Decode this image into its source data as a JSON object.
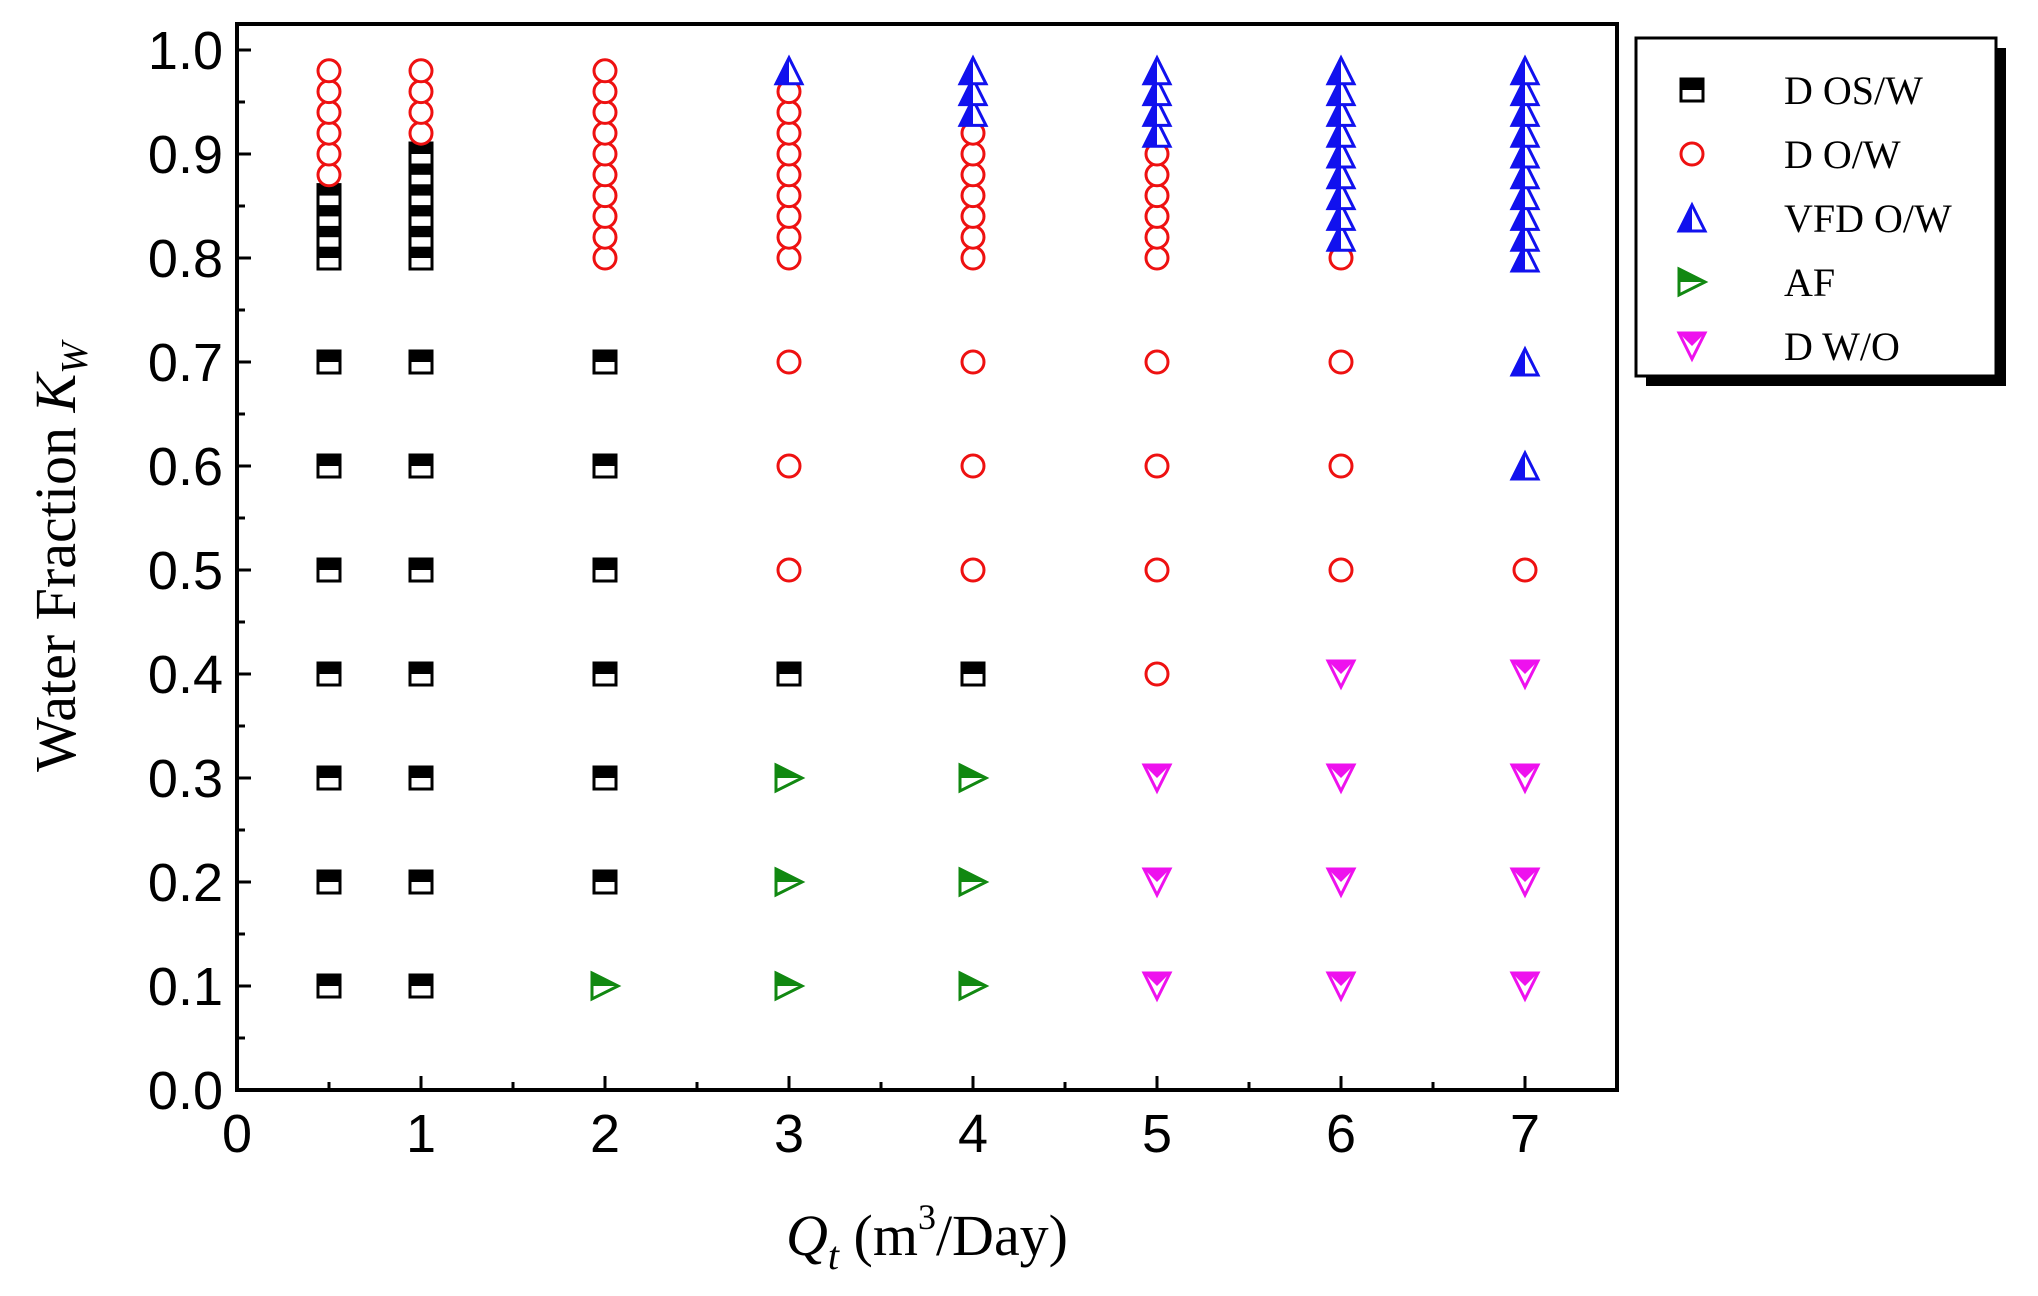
{
  "chart_data": {
    "type": "scatter",
    "title": "",
    "xlabel": {
      "symbol": "Q",
      "subscript": "t",
      "units_prefix": " (m",
      "superscript": "3",
      "units_suffix": "/Day)"
    },
    "ylabel": {
      "text": "Water Fraction ",
      "symbol": "K",
      "subscript": "W"
    },
    "xlim": [
      0,
      7.5
    ],
    "ylim": [
      0,
      1.0
    ],
    "x_ticks": [
      "0",
      "1",
      "2",
      "3",
      "4",
      "5",
      "6",
      "7"
    ],
    "y_ticks": [
      "0.0",
      "0.1",
      "0.2",
      "0.3",
      "0.4",
      "0.5",
      "0.6",
      "0.7",
      "0.8",
      "0.9",
      "1.0"
    ],
    "legend_position": "outside-top-right",
    "colors": {
      "axis": "#000000"
    },
    "series": [
      {
        "name": "D OS/W",
        "marker": "half-square",
        "color": "#000000",
        "points": [
          [
            0.5,
            0.1
          ],
          [
            0.5,
            0.2
          ],
          [
            0.5,
            0.3
          ],
          [
            0.5,
            0.4
          ],
          [
            0.5,
            0.5
          ],
          [
            0.5,
            0.6
          ],
          [
            0.5,
            0.7
          ],
          [
            0.5,
            0.8
          ],
          [
            0.5,
            0.82
          ],
          [
            0.5,
            0.84
          ],
          [
            0.5,
            0.86
          ],
          [
            1,
            0.1
          ],
          [
            1,
            0.2
          ],
          [
            1,
            0.3
          ],
          [
            1,
            0.4
          ],
          [
            1,
            0.5
          ],
          [
            1,
            0.6
          ],
          [
            1,
            0.7
          ],
          [
            1,
            0.8
          ],
          [
            1,
            0.82
          ],
          [
            1,
            0.84
          ],
          [
            1,
            0.86
          ],
          [
            1,
            0.88
          ],
          [
            1,
            0.9
          ],
          [
            2,
            0.2
          ],
          [
            2,
            0.3
          ],
          [
            2,
            0.4
          ],
          [
            2,
            0.5
          ],
          [
            2,
            0.6
          ],
          [
            2,
            0.7
          ],
          [
            3,
            0.4
          ],
          [
            4,
            0.4
          ]
        ]
      },
      {
        "name": "D O/W",
        "marker": "circle",
        "color": "#ee1111",
        "points": [
          [
            0.5,
            0.88
          ],
          [
            0.5,
            0.9
          ],
          [
            0.5,
            0.92
          ],
          [
            0.5,
            0.94
          ],
          [
            0.5,
            0.96
          ],
          [
            0.5,
            0.98
          ],
          [
            1,
            0.92
          ],
          [
            1,
            0.94
          ],
          [
            1,
            0.96
          ],
          [
            1,
            0.98
          ],
          [
            2,
            0.8
          ],
          [
            2,
            0.82
          ],
          [
            2,
            0.84
          ],
          [
            2,
            0.86
          ],
          [
            2,
            0.88
          ],
          [
            2,
            0.9
          ],
          [
            2,
            0.92
          ],
          [
            2,
            0.94
          ],
          [
            2,
            0.96
          ],
          [
            2,
            0.98
          ],
          [
            3,
            0.5
          ],
          [
            3,
            0.6
          ],
          [
            3,
            0.7
          ],
          [
            3,
            0.8
          ],
          [
            3,
            0.82
          ],
          [
            3,
            0.84
          ],
          [
            3,
            0.86
          ],
          [
            3,
            0.88
          ],
          [
            3,
            0.9
          ],
          [
            3,
            0.92
          ],
          [
            3,
            0.94
          ],
          [
            3,
            0.96
          ],
          [
            4,
            0.5
          ],
          [
            4,
            0.6
          ],
          [
            4,
            0.7
          ],
          [
            4,
            0.8
          ],
          [
            4,
            0.82
          ],
          [
            4,
            0.84
          ],
          [
            4,
            0.86
          ],
          [
            4,
            0.88
          ],
          [
            4,
            0.9
          ],
          [
            4,
            0.92
          ],
          [
            5,
            0.4
          ],
          [
            5,
            0.5
          ],
          [
            5,
            0.6
          ],
          [
            5,
            0.7
          ],
          [
            5,
            0.8
          ],
          [
            5,
            0.82
          ],
          [
            5,
            0.84
          ],
          [
            5,
            0.86
          ],
          [
            5,
            0.88
          ],
          [
            5,
            0.9
          ],
          [
            6,
            0.5
          ],
          [
            6,
            0.6
          ],
          [
            6,
            0.7
          ],
          [
            6,
            0.8
          ],
          [
            7,
            0.5
          ]
        ]
      },
      {
        "name": "VFD O/W",
        "marker": "half-triangle-up",
        "color": "#1111ee",
        "points": [
          [
            3,
            0.98
          ],
          [
            4,
            0.94
          ],
          [
            4,
            0.96
          ],
          [
            4,
            0.98
          ],
          [
            5,
            0.92
          ],
          [
            5,
            0.94
          ],
          [
            5,
            0.96
          ],
          [
            5,
            0.98
          ],
          [
            6,
            0.82
          ],
          [
            6,
            0.84
          ],
          [
            6,
            0.86
          ],
          [
            6,
            0.88
          ],
          [
            6,
            0.9
          ],
          [
            6,
            0.92
          ],
          [
            6,
            0.94
          ],
          [
            6,
            0.96
          ],
          [
            6,
            0.98
          ],
          [
            7,
            0.6
          ],
          [
            7,
            0.7
          ],
          [
            7,
            0.8
          ],
          [
            7,
            0.82
          ],
          [
            7,
            0.84
          ],
          [
            7,
            0.86
          ],
          [
            7,
            0.88
          ],
          [
            7,
            0.9
          ],
          [
            7,
            0.92
          ],
          [
            7,
            0.94
          ],
          [
            7,
            0.96
          ],
          [
            7,
            0.98
          ]
        ]
      },
      {
        "name": "AF",
        "marker": "half-triangle-right",
        "color": "#118811",
        "points": [
          [
            2,
            0.1
          ],
          [
            3,
            0.1
          ],
          [
            3,
            0.2
          ],
          [
            3,
            0.3
          ],
          [
            4,
            0.1
          ],
          [
            4,
            0.2
          ],
          [
            4,
            0.3
          ]
        ]
      },
      {
        "name": "D W/O",
        "marker": "half-triangle-down",
        "color": "#ee11ee",
        "points": [
          [
            5,
            0.1
          ],
          [
            5,
            0.2
          ],
          [
            5,
            0.3
          ],
          [
            6,
            0.1
          ],
          [
            6,
            0.2
          ],
          [
            6,
            0.3
          ],
          [
            6,
            0.4
          ],
          [
            7,
            0.1
          ],
          [
            7,
            0.2
          ],
          [
            7,
            0.3
          ],
          [
            7,
            0.4
          ]
        ]
      }
    ]
  }
}
